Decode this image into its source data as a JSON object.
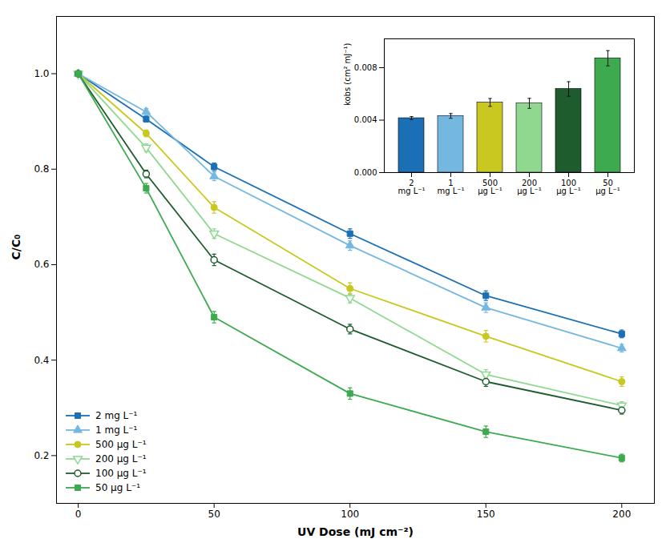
{
  "chart_data": [
    {
      "type": "line",
      "xlabel": "UV Dose (mJ cm⁻²)",
      "ylabel": "C/C₀",
      "x": [
        0,
        25,
        50,
        100,
        150,
        200
      ],
      "series": [
        {
          "name": "2 mg L⁻¹",
          "color": "#1A6FB5",
          "marker": "square",
          "values": [
            1.0,
            0.905,
            0.805,
            0.665,
            0.535,
            0.455
          ],
          "errors": [
            0.003,
            0.006,
            0.008,
            0.01,
            0.01,
            0.008
          ]
        },
        {
          "name": "1 mg L⁻¹",
          "color": "#74B8E0",
          "marker": "triangle-up",
          "values": [
            1.0,
            0.92,
            0.785,
            0.64,
            0.51,
            0.425
          ],
          "errors": [
            0.003,
            0.007,
            0.009,
            0.01,
            0.01,
            0.008
          ]
        },
        {
          "name": "500 μg L⁻¹",
          "color": "#C8C820",
          "marker": "circle",
          "values": [
            1.0,
            0.875,
            0.72,
            0.55,
            0.45,
            0.355
          ],
          "errors": [
            0.003,
            0.007,
            0.012,
            0.012,
            0.012,
            0.01
          ]
        },
        {
          "name": "200 μg L⁻¹",
          "color": "#90D890",
          "marker": "open-triangle-down",
          "values": [
            1.0,
            0.845,
            0.665,
            0.53,
            0.37,
            0.305
          ],
          "errors": [
            0.003,
            0.008,
            0.01,
            0.01,
            0.01,
            0.008
          ]
        },
        {
          "name": "100 μg L⁻¹",
          "color": "#1E5C2E",
          "marker": "open-circle",
          "values": [
            1.0,
            0.79,
            0.61,
            0.465,
            0.355,
            0.295
          ],
          "errors": [
            0.003,
            0.008,
            0.012,
            0.01,
            0.01,
            0.008
          ]
        },
        {
          "name": "50 μg L⁻¹",
          "color": "#3DAA50",
          "marker": "square",
          "values": [
            1.0,
            0.76,
            0.49,
            0.33,
            0.25,
            0.195
          ],
          "errors": [
            0.003,
            0.01,
            0.012,
            0.012,
            0.012,
            0.008
          ]
        }
      ],
      "xlim": [
        -8,
        212
      ],
      "ylim": [
        0.1,
        1.12
      ],
      "xticks": [
        0,
        50,
        100,
        150,
        200
      ],
      "yticks": [
        0.2,
        0.4,
        0.6,
        0.8,
        {
          "value": 1.0,
          "label": "1.0"
        }
      ],
      "legend": "lower left"
    },
    {
      "type": "bar",
      "ylabel": "kobs (cm² mJ⁻¹)",
      "categories": [
        "2\nmg L⁻¹",
        "1\nmg L⁻¹",
        "500\nμg L⁻¹",
        "200\nμg L⁻¹",
        "100\nμg L⁻¹",
        "50\nμg L⁻¹"
      ],
      "values": [
        0.00415,
        0.00432,
        0.00535,
        0.00528,
        0.00638,
        0.00872
      ],
      "errors": [
        0.00012,
        0.00018,
        0.0003,
        0.00038,
        0.00055,
        0.00058
      ],
      "colors": [
        "#1A6FB5",
        "#74B8E0",
        "#C8C820",
        "#90D890",
        "#1E5C2E",
        "#3DAA50"
      ],
      "ylim": [
        0.0,
        0.0102
      ],
      "yticks": [
        {
          "value": 0.0,
          "label": "0.000"
        },
        {
          "value": 0.004,
          "label": "0.004"
        },
        {
          "value": 0.008,
          "label": "0.008"
        }
      ]
    }
  ]
}
